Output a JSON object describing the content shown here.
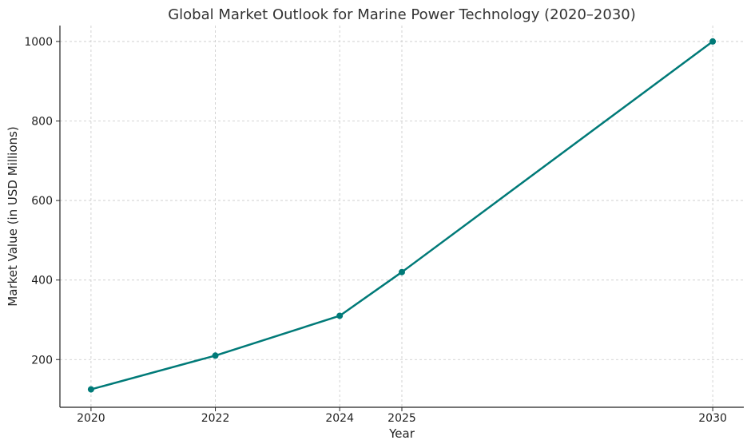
{
  "chart_data": {
    "type": "line",
    "title": "Global Market Outlook for Marine Power Technology (2020–2030)",
    "xlabel": "Year",
    "ylabel": "Market Value (in USD Millions)",
    "x": [
      2020,
      2022,
      2024,
      2025,
      2030
    ],
    "x_ticks": [
      2020,
      2022,
      2024,
      2025,
      2030
    ],
    "y_ticks": [
      200,
      400,
      600,
      800,
      1000
    ],
    "xlim": [
      2019.5,
      2030.5
    ],
    "ylim": [
      80,
      1040
    ],
    "grid": true,
    "series": [
      {
        "values": [
          125,
          210,
          310,
          420,
          1000
        ],
        "color": "#007a78",
        "marker": "circle"
      }
    ]
  }
}
